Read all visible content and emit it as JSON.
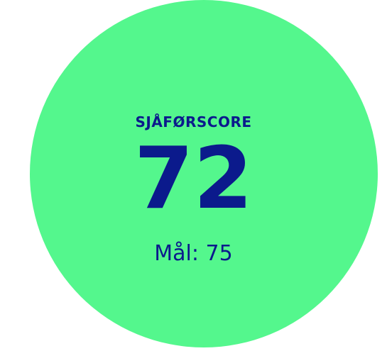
{
  "score_widget": {
    "title": "SJÅFØRSCORE",
    "score": "72",
    "goal": "Mål: 75"
  }
}
